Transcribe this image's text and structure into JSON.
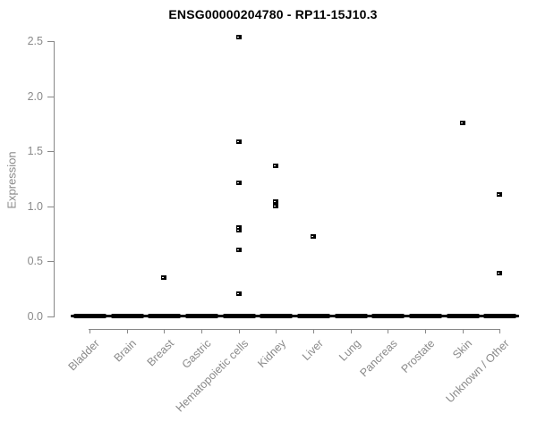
{
  "window": {
    "background": "#ffffff"
  },
  "chart_data": {
    "type": "scatter",
    "title": "ENSG00000204780 - RP11-15J10.3",
    "ylabel": "Expression",
    "xlabel": "",
    "ylim": [
      0,
      2.5
    ],
    "y_ticks": [
      "0.0",
      "0.5",
      "1.0",
      "1.5",
      "2.0",
      "2.5"
    ],
    "grid": false,
    "legend": false,
    "marker": "small-black-open-square",
    "categories": [
      "Bladder",
      "Brain",
      "Breast",
      "Gastric",
      "Hematopoietic cells",
      "Kidney",
      "Liver",
      "Lung",
      "Pancreas",
      "Prostate",
      "Skin",
      "Unknown / Other"
    ],
    "series": [
      {
        "category": "Bladder",
        "values": [],
        "zero_cluster": true
      },
      {
        "category": "Brain",
        "values": [],
        "zero_cluster": true
      },
      {
        "category": "Breast",
        "values": [
          0.35
        ],
        "zero_cluster": true
      },
      {
        "category": "Gastric",
        "values": [],
        "zero_cluster": true
      },
      {
        "category": "Hematopoietic cells",
        "values": [
          2.53,
          1.58,
          1.21,
          0.8,
          0.78,
          0.6,
          0.2
        ],
        "zero_cluster": true
      },
      {
        "category": "Kidney",
        "values": [
          1.36,
          1.04,
          1.0
        ],
        "zero_cluster": true
      },
      {
        "category": "Liver",
        "values": [
          0.72
        ],
        "zero_cluster": true
      },
      {
        "category": "Lung",
        "values": [],
        "zero_cluster": true
      },
      {
        "category": "Pancreas",
        "values": [],
        "zero_cluster": true
      },
      {
        "category": "Prostate",
        "values": [],
        "zero_cluster": true
      },
      {
        "category": "Skin",
        "values": [
          1.75
        ],
        "zero_cluster": true
      },
      {
        "category": "Unknown / Other",
        "values": [
          1.1,
          0.39
        ],
        "zero_cluster": true
      }
    ],
    "zero_cluster_value": 0.0,
    "colors": {
      "point": "#000000",
      "axis_line": "#888888",
      "tick_text": "#8a8a8a",
      "title_text": "#000000"
    }
  }
}
